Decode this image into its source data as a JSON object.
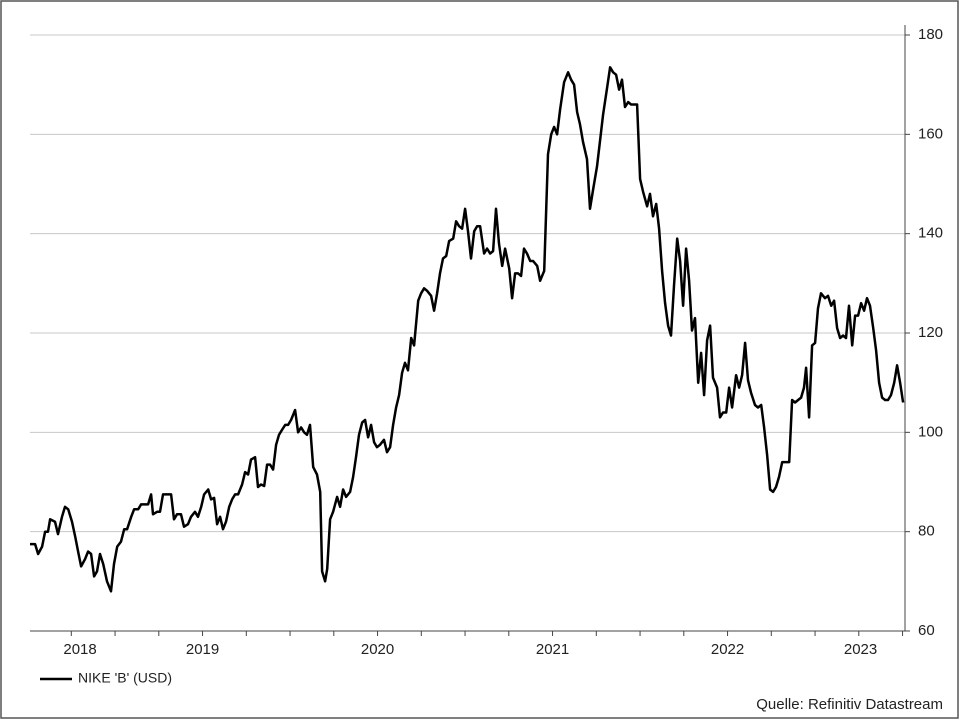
{
  "chart_data": {
    "type": "line",
    "series": [
      {
        "name": "NIKE 'B' (USD)",
        "color": "#000000",
        "x": [
          2018.514,
          2018.543,
          2018.56,
          2018.583,
          2018.6,
          2018.617,
          2018.629,
          2018.657,
          2018.674,
          2018.697,
          2018.714,
          2018.732,
          2018.754,
          2018.772,
          2018.789,
          2018.806,
          2018.829,
          2018.846,
          2018.863,
          2018.88,
          2018.897,
          2018.914,
          2018.932,
          2018.954,
          2018.977,
          2018.994,
          2019.012,
          2019.034,
          2019.052,
          2019.069,
          2019.092,
          2019.109,
          2019.132,
          2019.149,
          2019.172,
          2019.189,
          2019.206,
          2019.217,
          2019.24,
          2019.257,
          2019.274,
          2019.297,
          2019.32,
          2019.337,
          2019.354,
          2019.377,
          2019.394,
          2019.417,
          2019.434,
          2019.457,
          2019.474,
          2019.492,
          2019.509,
          2019.532,
          2019.549,
          2019.566,
          2019.583,
          2019.6,
          2019.617,
          2019.634,
          2019.652,
          2019.669,
          2019.686,
          2019.703,
          2019.726,
          2019.743,
          2019.76,
          2019.777,
          2019.8,
          2019.817,
          2019.834,
          2019.852,
          2019.869,
          2019.886,
          2019.903,
          2019.92,
          2019.937,
          2019.954,
          2019.972,
          2019.989,
          2020.006,
          2020.029,
          2020.046,
          2020.063,
          2020.08,
          2020.097,
          2020.114,
          2020.132,
          2020.154,
          2020.172,
          2020.183,
          2020.2,
          2020.212,
          2020.229,
          2020.246,
          2020.269,
          2020.286,
          2020.303,
          2020.32,
          2020.343,
          2020.36,
          2020.377,
          2020.394,
          2020.412,
          2020.429,
          2020.446,
          2020.463,
          2020.48,
          2020.497,
          2020.514,
          2020.537,
          2020.554,
          2020.572,
          2020.589,
          2020.606,
          2020.623,
          2020.64,
          2020.657,
          2020.674,
          2020.692,
          2020.709,
          2020.732,
          2020.749,
          2020.766,
          2020.783,
          2020.806,
          2020.823,
          2020.84,
          2020.857,
          2020.874,
          2020.892,
          2020.909,
          2020.932,
          2020.949,
          2020.966,
          2020.983,
          2021.0,
          2021.017,
          2021.034,
          2021.052,
          2021.069,
          2021.086,
          2021.109,
          2021.126,
          2021.143,
          2021.16,
          2021.177,
          2021.194,
          2021.212,
          2021.229,
          2021.252,
          2021.269,
          2021.286,
          2021.303,
          2021.32,
          2021.337,
          2021.354,
          2021.372,
          2021.389,
          2021.412,
          2021.429,
          2021.452,
          2021.474,
          2021.492,
          2021.509,
          2021.526,
          2021.543,
          2021.566,
          2021.589,
          2021.606,
          2021.623,
          2021.64,
          2021.657,
          2021.674,
          2021.697,
          2021.714,
          2021.732,
          2021.754,
          2021.772,
          2021.789,
          2021.812,
          2021.829,
          2021.846,
          2021.863,
          2021.88,
          2021.897,
          2021.914,
          2021.932,
          2021.949,
          2021.966,
          2021.983,
          2022.0,
          2022.017,
          2022.04,
          2022.057,
          2022.074,
          2022.092,
          2022.109,
          2022.126,
          2022.143,
          2022.16,
          2022.177,
          2022.194,
          2022.212,
          2022.229,
          2022.246,
          2022.263,
          2022.28,
          2022.297,
          2022.314,
          2022.332,
          2022.349,
          2022.366,
          2022.383,
          2022.4,
          2022.417,
          2022.44,
          2022.457,
          2022.474,
          2022.492,
          2022.509,
          2022.526,
          2022.549,
          2022.566,
          2022.583,
          2022.6,
          2022.617,
          2022.634,
          2022.657,
          2022.674,
          2022.692,
          2022.709,
          2022.726,
          2022.743,
          2022.76,
          2022.777,
          2022.794,
          2022.812,
          2022.834,
          2022.852,
          2022.869,
          2022.886,
          2022.903,
          2022.92,
          2022.937,
          2022.949,
          2022.966,
          2022.983,
          2023.0,
          2023.017,
          2023.034,
          2023.057,
          2023.074,
          2023.092,
          2023.109,
          2023.126,
          2023.143,
          2023.16,
          2023.177,
          2023.194,
          2023.212,
          2023.229,
          2023.246,
          2023.263,
          2023.28,
          2023.297,
          2023.314,
          2023.332,
          2023.349,
          2023.366,
          2023.383,
          2023.4,
          2023.417,
          2023.434,
          2023.452,
          2023.469,
          2023.486,
          2023.503
        ],
        "values": [
          77.5,
          77.5,
          75.5,
          77,
          80,
          80,
          82.5,
          82,
          79.5,
          83,
          85,
          84.5,
          82,
          79,
          76,
          73,
          74.5,
          76,
          75.5,
          71,
          72,
          75.5,
          73.5,
          70,
          68,
          73.5,
          77,
          78,
          80.5,
          80.5,
          83,
          84.5,
          84.5,
          85.5,
          85.5,
          85.5,
          87.5,
          83.5,
          84,
          84,
          87.5,
          87.5,
          87.5,
          82.5,
          83.5,
          83.5,
          81,
          81.5,
          83,
          84,
          83,
          85,
          87.5,
          88.5,
          86.5,
          86.8,
          81.5,
          83,
          80.5,
          82,
          85,
          86.5,
          87.5,
          87.5,
          89.5,
          92,
          91.5,
          94.5,
          95,
          89,
          89.5,
          89.2,
          93.5,
          93.5,
          92.5,
          97.5,
          99.5,
          100.5,
          101.5,
          101.5,
          102.5,
          104.5,
          100,
          101,
          100,
          99.5,
          101.5,
          93,
          91.5,
          88,
          72,
          70,
          72.5,
          82.5,
          84,
          87,
          85,
          88.5,
          87,
          88,
          91,
          95,
          99.5,
          102,
          102.5,
          99,
          101.5,
          98,
          97,
          97.5,
          98.5,
          96,
          97,
          101.5,
          105,
          107.5,
          112,
          114,
          112.5,
          119,
          117.5,
          126.5,
          128,
          129,
          128.5,
          127.5,
          124.5,
          128,
          132,
          135,
          135.5,
          138.5,
          139,
          142.5,
          141.5,
          141,
          145,
          140.5,
          135,
          140.5,
          141.5,
          141.5,
          136,
          137,
          136,
          136.5,
          145,
          138,
          133.5,
          137,
          133,
          127,
          132,
          132,
          131.5,
          137,
          136,
          134.5,
          134.5,
          133.5,
          130.5,
          132.5,
          156,
          160,
          161.5,
          160,
          165,
          170.5,
          172.5,
          171,
          170,
          164.5,
          162,
          158.5,
          155,
          145,
          149,
          153.5,
          159,
          164,
          169.5,
          173.5,
          172.5,
          172,
          169,
          171,
          165.5,
          166.5,
          166,
          166,
          166,
          151,
          148.5,
          145.5,
          148,
          143.5,
          146,
          141,
          132.5,
          126,
          121.5,
          119.5,
          129.5,
          139,
          134.5,
          125.5,
          137,
          130.5,
          120.5,
          123,
          110,
          116,
          107.5,
          118.5,
          121.5,
          111,
          109,
          103,
          104,
          104,
          109,
          105,
          111.5,
          109,
          111.5,
          118,
          110.5,
          108,
          105.5,
          105,
          105.5,
          101,
          95.5,
          88.5,
          88,
          89,
          91,
          94,
          94,
          94,
          106.5,
          106,
          106.5,
          107,
          109,
          113,
          103,
          117.5,
          118,
          125,
          128,
          127,
          127.5,
          125.5,
          126.5,
          121,
          119,
          119.5,
          119,
          125.5,
          117.5,
          123.5,
          123.5,
          126,
          124.5,
          127,
          125.5,
          121,
          116.5,
          110,
          107,
          106.5,
          106.5,
          107.5,
          110,
          113.5,
          110,
          106
        ]
      }
    ],
    "xlim": [
      2018.514,
      2023.514
    ],
    "xticks": [
      {
        "value": 2018.8,
        "label": "2018"
      },
      {
        "value": 2019.5,
        "label": "2019"
      },
      {
        "value": 2020.5,
        "label": "2020"
      },
      {
        "value": 2021.5,
        "label": "2021"
      },
      {
        "value": 2022.5,
        "label": "2022"
      },
      {
        "value": 2023.26,
        "label": "2023"
      }
    ],
    "xminorticks": [
      2018.75,
      2019,
      2019.25,
      2019.5,
      2019.75,
      2020,
      2020.25,
      2020.5,
      2020.75,
      2021,
      2021.25,
      2021.5,
      2021.75,
      2022,
      2022.25,
      2022.5,
      2022.75,
      2023,
      2023.25,
      2023.5
    ],
    "ylim": [
      60,
      180
    ],
    "yticks": [
      60,
      80,
      100,
      120,
      140,
      160,
      180
    ],
    "grid": true,
    "legend": "bottom-left",
    "source": "Quelle: Refinitiv Datastream"
  }
}
